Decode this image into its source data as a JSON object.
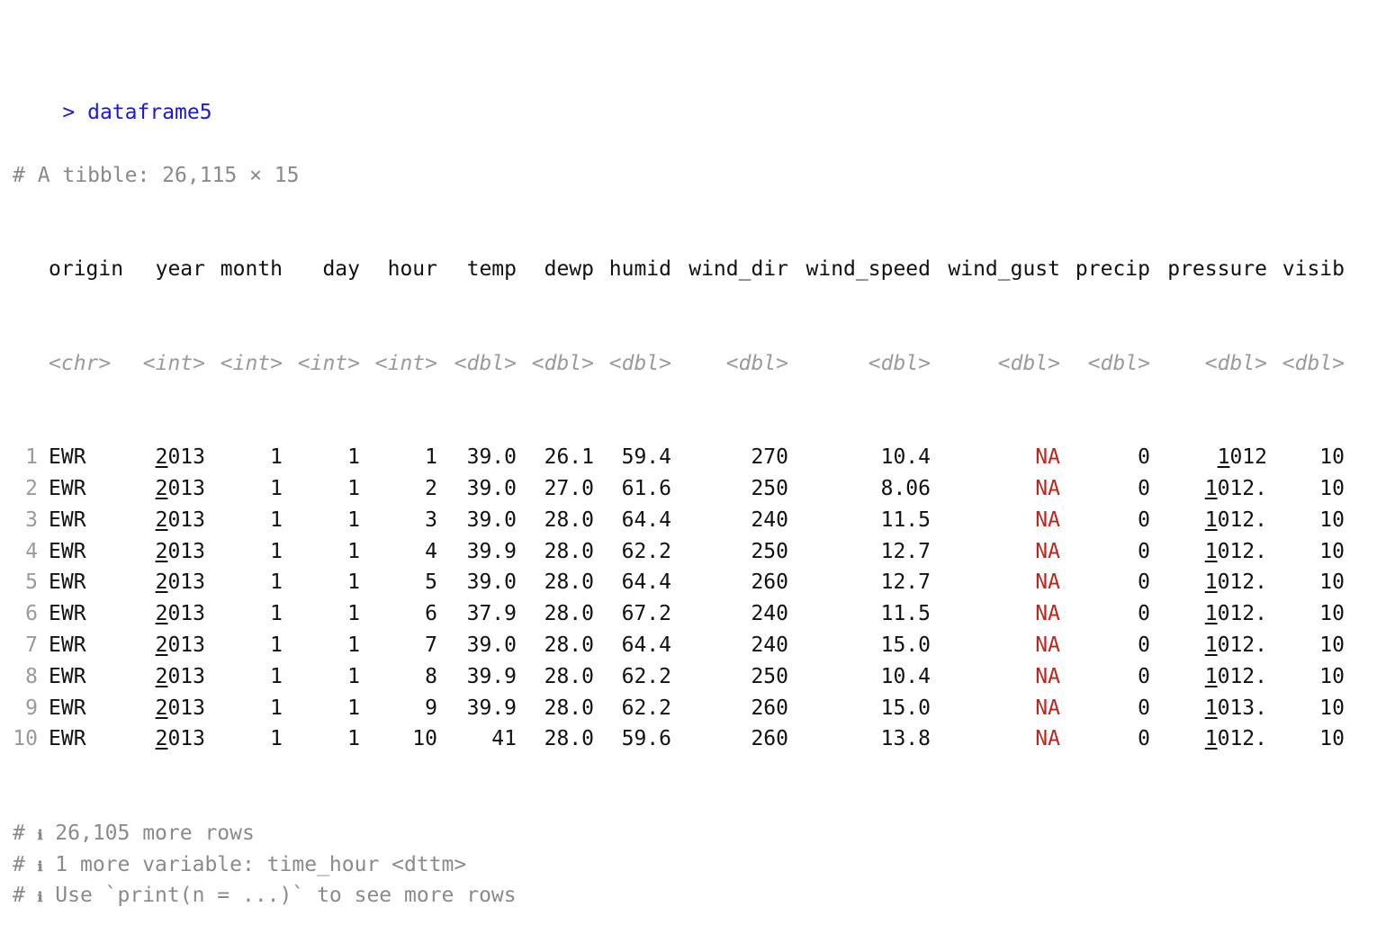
{
  "command": {
    "prompt_symbol": ">",
    "text": "dataframe5"
  },
  "tibble_header": "# A tibble: 26,115 × 15",
  "columns": [
    {
      "name": "origin",
      "type": "<chr>"
    },
    {
      "name": "year",
      "type": "<int>"
    },
    {
      "name": "month",
      "type": "<int>"
    },
    {
      "name": "day",
      "type": "<int>"
    },
    {
      "name": "hour",
      "type": "<int>"
    },
    {
      "name": "temp",
      "type": "<dbl>"
    },
    {
      "name": "dewp",
      "type": "<dbl>"
    },
    {
      "name": "humid",
      "type": "<dbl>"
    },
    {
      "name": "wind_dir",
      "type": "<dbl>"
    },
    {
      "name": "wind_speed",
      "type": "<dbl>"
    },
    {
      "name": "wind_gust",
      "type": "<dbl>"
    },
    {
      "name": "precip",
      "type": "<dbl>"
    },
    {
      "name": "pressure",
      "type": "<dbl>"
    },
    {
      "name": "visib",
      "type": "<dbl>"
    }
  ],
  "rows": [
    {
      "n": "1",
      "cells": [
        "EWR",
        "2013",
        "1",
        "1",
        "1",
        "39.0",
        "26.1",
        "59.4",
        "270",
        "10.4",
        "NA",
        "0",
        "1012",
        "10"
      ]
    },
    {
      "n": "2",
      "cells": [
        "EWR",
        "2013",
        "1",
        "1",
        "2",
        "39.0",
        "27.0",
        "61.6",
        "250",
        " 8.06",
        "NA",
        "0",
        "1012.",
        "10"
      ]
    },
    {
      "n": "3",
      "cells": [
        "EWR",
        "2013",
        "1",
        "1",
        "3",
        "39.0",
        "28.0",
        "64.4",
        "240",
        "11.5",
        "NA",
        "0",
        "1012.",
        "10"
      ]
    },
    {
      "n": "4",
      "cells": [
        "EWR",
        "2013",
        "1",
        "1",
        "4",
        "39.9",
        "28.0",
        "62.2",
        "250",
        "12.7",
        "NA",
        "0",
        "1012.",
        "10"
      ]
    },
    {
      "n": "5",
      "cells": [
        "EWR",
        "2013",
        "1",
        "1",
        "5",
        "39.0",
        "28.0",
        "64.4",
        "260",
        "12.7",
        "NA",
        "0",
        "1012.",
        "10"
      ]
    },
    {
      "n": "6",
      "cells": [
        "EWR",
        "2013",
        "1",
        "1",
        "6",
        "37.9",
        "28.0",
        "67.2",
        "240",
        "11.5",
        "NA",
        "0",
        "1012.",
        "10"
      ]
    },
    {
      "n": "7",
      "cells": [
        "EWR",
        "2013",
        "1",
        "1",
        "7",
        "39.0",
        "28.0",
        "64.4",
        "240",
        "15.0",
        "NA",
        "0",
        "1012.",
        "10"
      ]
    },
    {
      "n": "8",
      "cells": [
        "EWR",
        "2013",
        "1",
        "1",
        "8",
        "39.9",
        "28.0",
        "62.2",
        "250",
        "10.4",
        "NA",
        "0",
        "1012.",
        "10"
      ]
    },
    {
      "n": "9",
      "cells": [
        "EWR",
        "2013",
        "1",
        "1",
        "9",
        "39.9",
        "28.0",
        "62.2",
        "260",
        "15.0",
        "NA",
        "0",
        "1013.",
        "10"
      ]
    },
    {
      "n": "10",
      "cells": [
        "EWR",
        "2013",
        "1",
        "1",
        "10",
        "41",
        "28.0",
        "59.6",
        "260",
        "13.8",
        "NA",
        "0",
        "1012.",
        "10"
      ]
    }
  ],
  "footer": [
    {
      "prefix": "#",
      "icon": "ℹ",
      "icon_name": "info-icon",
      "text": "26,105 more rows"
    },
    {
      "prefix": "#",
      "icon": "ℹ",
      "icon_name": "info-icon",
      "text": "1 more variable: time_hour <dttm>"
    },
    {
      "prefix": "#",
      "icon": "ℹ",
      "icon_name": "info-icon",
      "text": "Use `print(n = ...)` to see more rows"
    }
  ],
  "colors": {
    "prompt": "#1a1ad6",
    "na_value": "#c0241d",
    "comment": "#8a8a8a"
  }
}
